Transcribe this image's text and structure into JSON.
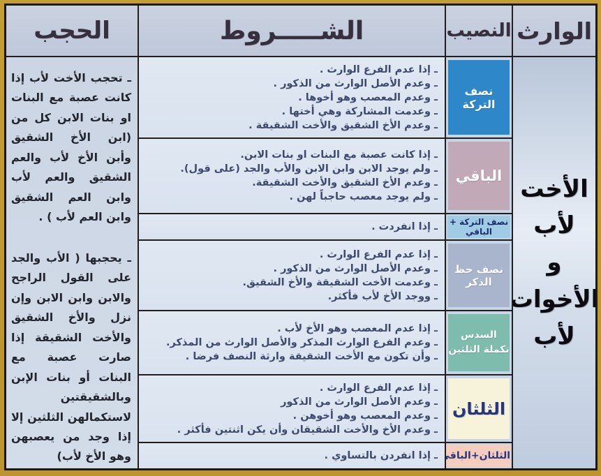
{
  "accent_colors": {
    "frame_gold": "#C29A33",
    "table_border": "#1C1916",
    "header_bg": "#C4CDDD",
    "cell_bg": "#DCE5F0"
  },
  "header": {
    "heir": "الوارث",
    "share": "النصيب",
    "conditions": "الشـــــروط",
    "blocking": "الحجب"
  },
  "heir": {
    "title": "الأخت\nلأب\nو\nالأخوات\nلأب"
  },
  "blocking": {
    "paragraph1": "ـ تحجب الأخت لأب إذا كانت عصبة مع البنات او بنات الابن كل من (ابن الأخ الشقيق وأبن الأخ لأب والعم الشقيق والعم لأب وابن العم الشقيق وابن العم لأب ) .",
    "paragraph2": "ـ يحجبها ( الأب والجد على القول الراجح والابن وابن الابن وإن نزل والأخ الشقيق والأخت الشقيقة إذا صارت عصبة مع البنات أو بنات الإبن وبالشقيقتين لاستكمالهن الثلثين إلا إذا وجد من يعصبهن وهو الأخ لأب)"
  },
  "rows": [
    {
      "share": {
        "label": "نصف التركة",
        "bg": "#2E87C8",
        "color": "#FFFFFF"
      },
      "conditions": [
        "ـ إذا عدم الفرع الوارث .",
        "ـ وعدم الأصل الوارث من الذكور .",
        "ـ وعدم المعصب وهو أخوها .",
        "ـ وعدمت المشاركة وهي أختها .",
        "ـ وعدم الأخ الشقيق والأخت الشقيقة ."
      ]
    },
    {
      "share": {
        "label": "الباقي",
        "bg": "#C2A9B7",
        "color": "#FFFFFF"
      },
      "conditions": [
        "ـ إذا كانت عصبة مع البنات او بنات الابن.",
        "ـ ولم يوجد الابن وابن الابن والأب والجد (على قول).",
        "ـ وعدم الأخ الشقيق والأخت الشقيقة.",
        "ـ ولم يوجد معصب حاجباً لهن ."
      ]
    },
    {
      "share": {
        "label": "نصف التركة + الباقي",
        "bg": "#9FCBE5",
        "color": "#1D2C6B"
      },
      "conditions": [
        "ـ إذا انفردت ."
      ]
    },
    {
      "share": {
        "label": "نصف حظ الذكر",
        "bg": "#A9B5CD",
        "color": "#FFFFFF"
      },
      "conditions": [
        "ـ إذا عدم الفرع الوارث .",
        "ـ وعدم الأصل الوارث من الذكور .",
        "ـ وعدمت الأخت الشقيقة والأخ الشقيق.",
        "ـ ووجد الأخ لأب فأكثر."
      ]
    },
    {
      "share": {
        "label": "السدس\nتكملة الثلثين",
        "bg": "#7EBCAD",
        "color": "#FFFFFF"
      },
      "conditions": [
        "ـ إذا عدم المعصب وهو الأخ لأب .",
        "ـ وعدم الفرع الوارث المذكر والأصل الوارث من المذكر.",
        "ـ وأن تكون مع الأخت الشقيقة وارثة النصف فرضا ."
      ]
    },
    {
      "share": {
        "label": "الثلثان",
        "bg": "#F6F3DA",
        "color": "#27357B"
      },
      "conditions": [
        "ـ إذا عدم الفرع الوارث .",
        "ـ وعدم الأصل الوارث من الذكور",
        "ـ وعدم المعصب وهو أخوهن .",
        "ـ وعدم الأخ والأخت الشقيقان وأن يكن اثنتين فأكثر ."
      ]
    },
    {
      "share": {
        "label": "الثلثان+الباقي",
        "bg": "#F4CDBF",
        "color": "#27357B"
      },
      "conditions": [
        "ـ إذا انفردن بالتساوي ."
      ]
    }
  ]
}
